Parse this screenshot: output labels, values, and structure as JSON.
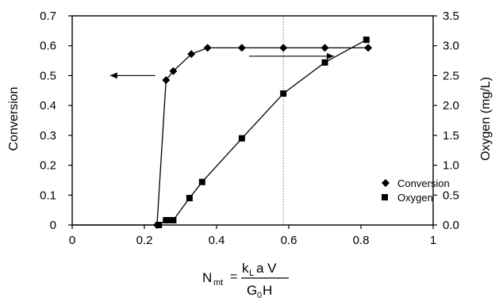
{
  "chart_data": {
    "type": "scatter",
    "xlabel": {
      "main": "N",
      "sub": "mt",
      "eq": "=",
      "num_k": "k",
      "num_L": "L",
      "num_rest": "a V",
      "den_G": "G",
      "den_sub": "0",
      "den_rest": "H"
    },
    "ylabel_left": "Conversion",
    "ylabel_right": "Oxygen (mg/L)",
    "xlim": [
      0,
      1
    ],
    "ylim_left": [
      0,
      0.7
    ],
    "ylim_right": [
      0,
      3.5
    ],
    "x_ticks": [
      "0",
      "0.2",
      "0.4",
      "0.6",
      "0.8",
      "1"
    ],
    "y_left_ticks": [
      "0",
      "0.1",
      "0.2",
      "0.3",
      "0.4",
      "0.5",
      "0.6",
      "0.7"
    ],
    "y_right_ticks": [
      "0.0",
      "0.5",
      "1.0",
      "1.5",
      "2.0",
      "2.5",
      "3.0",
      "3.5"
    ],
    "vertical_reference_x": 0.585,
    "series": [
      {
        "name": "Conversion",
        "axis": "left",
        "marker": "diamond",
        "lead_in": [
          [
            0,
            0
          ],
          [
            0.235,
            0
          ]
        ],
        "points": [
          [
            0.235,
            0.0
          ],
          [
            0.26,
            0.485
          ],
          [
            0.28,
            0.515
          ],
          [
            0.33,
            0.572
          ],
          [
            0.375,
            0.593
          ],
          [
            0.47,
            0.593
          ],
          [
            0.585,
            0.593
          ],
          [
            0.7,
            0.593
          ],
          [
            0.82,
            0.593
          ]
        ]
      },
      {
        "name": "Oxygen",
        "axis": "right",
        "marker": "square",
        "points": [
          [
            0.24,
            0.0
          ],
          [
            0.26,
            0.08
          ],
          [
            0.27,
            0.08
          ],
          [
            0.28,
            0.08
          ],
          [
            0.325,
            0.45
          ],
          [
            0.36,
            0.72
          ],
          [
            0.47,
            1.45
          ],
          [
            0.585,
            2.2
          ],
          [
            0.7,
            2.72
          ],
          [
            0.815,
            3.1
          ]
        ]
      }
    ],
    "annotations": [
      {
        "type": "arrow",
        "direction": "left",
        "from": [
          0.23,
          0.5
        ],
        "to": [
          0.105,
          0.5
        ],
        "axis": "left"
      },
      {
        "type": "arrow",
        "direction": "right",
        "from": [
          0.49,
          0.565
        ],
        "to": [
          0.725,
          0.565
        ],
        "axis": "left"
      }
    ],
    "legend": {
      "placement": "bottom-right",
      "entries": [
        {
          "label": "Conversion",
          "marker": "diamond"
        },
        {
          "label": "Oxygen",
          "marker": "square"
        }
      ]
    }
  }
}
